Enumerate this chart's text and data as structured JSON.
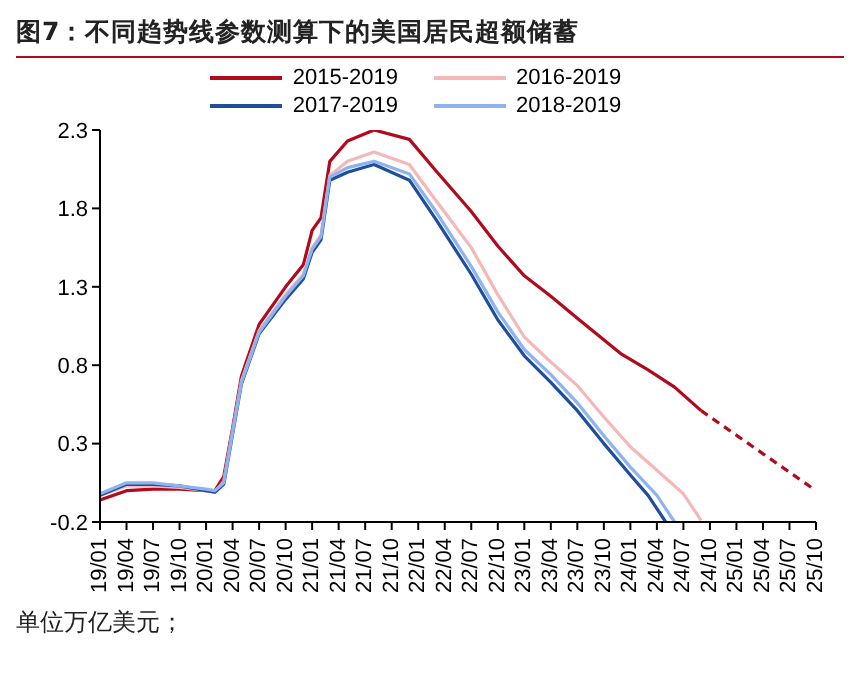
{
  "chart_data": {
    "type": "line",
    "title": "图7：不同趋势线参数测算下的美国居民超额储蓄",
    "annotations": [
      "单位万亿美元；"
    ],
    "xlim": [
      "2019-01",
      "2025-10"
    ],
    "xticks": [
      {
        "value": "2019-01",
        "label": "19/01"
      },
      {
        "value": "2019-04",
        "label": "19/04"
      },
      {
        "value": "2019-07",
        "label": "19/07"
      },
      {
        "value": "2019-10",
        "label": "19/10"
      },
      {
        "value": "2020-01",
        "label": "20/01"
      },
      {
        "value": "2020-04",
        "label": "20/04"
      },
      {
        "value": "2020-07",
        "label": "20/07"
      },
      {
        "value": "2020-10",
        "label": "20/10"
      },
      {
        "value": "2021-01",
        "label": "21/01"
      },
      {
        "value": "2021-04",
        "label": "21/04"
      },
      {
        "value": "2021-07",
        "label": "21/07"
      },
      {
        "value": "2021-10",
        "label": "21/10"
      },
      {
        "value": "2022-01",
        "label": "22/01"
      },
      {
        "value": "2022-04",
        "label": "22/04"
      },
      {
        "value": "2022-07",
        "label": "22/07"
      },
      {
        "value": "2022-10",
        "label": "22/10"
      },
      {
        "value": "2023-01",
        "label": "23/01"
      },
      {
        "value": "2023-04",
        "label": "23/04"
      },
      {
        "value": "2023-07",
        "label": "23/07"
      },
      {
        "value": "2023-10",
        "label": "23/10"
      },
      {
        "value": "2024-01",
        "label": "24/01"
      },
      {
        "value": "2024-04",
        "label": "24/04"
      },
      {
        "value": "2024-07",
        "label": "24/07"
      },
      {
        "value": "2024-10",
        "label": "24/10"
      },
      {
        "value": "2025-01",
        "label": "25/01"
      },
      {
        "value": "2025-04",
        "label": "25/04"
      },
      {
        "value": "2025-07",
        "label": "25/07"
      },
      {
        "value": "2025-10",
        "label": "25/10"
      }
    ],
    "ylim": [
      -0.2,
      2.3
    ],
    "yticks": [
      -0.2,
      0.3,
      0.8,
      1.3,
      1.8,
      2.3
    ],
    "legend": "top",
    "marker": "none",
    "series": [
      {
        "name": "2015-2019",
        "color": "#b00a1c",
        "line_style": "solid",
        "x": [
          "2019-01",
          "2019-04",
          "2019-07",
          "2019-10",
          "2020-01",
          "2020-02",
          "2020-03",
          "2020-04",
          "2020-05",
          "2020-07",
          "2020-10",
          "2020-12",
          "2021-01",
          "2021-02",
          "2021-03",
          "2021-05",
          "2021-08",
          "2021-12",
          "2022-03",
          "2022-07",
          "2022-10",
          "2023-01",
          "2023-04",
          "2023-07",
          "2023-12",
          "2024-03",
          "2024-06",
          "2024-09"
        ],
        "values": [
          -0.06,
          0.0,
          0.01,
          0.01,
          0.0,
          0.0,
          0.09,
          0.4,
          0.73,
          1.06,
          1.3,
          1.44,
          1.66,
          1.74,
          2.1,
          2.23,
          2.3,
          2.24,
          2.04,
          1.78,
          1.56,
          1.37,
          1.24,
          1.1,
          0.87,
          0.77,
          0.66,
          0.51
        ]
      },
      {
        "color": "#b00a1c",
        "line_style": "dashed",
        "x": [
          "2024-09",
          "2025-10"
        ],
        "values": [
          0.51,
          0.0
        ]
      },
      {
        "name": "2016-2019",
        "color": "#f5b8b8",
        "line_style": "solid",
        "x": [
          "2019-01",
          "2019-04",
          "2019-07",
          "2019-10",
          "2020-01",
          "2020-02",
          "2020-03",
          "2020-04",
          "2020-05",
          "2020-07",
          "2020-10",
          "2020-12",
          "2021-01",
          "2021-02",
          "2021-03",
          "2021-05",
          "2021-08",
          "2021-12",
          "2022-03",
          "2022-07",
          "2022-10",
          "2023-01",
          "2023-04",
          "2023-07",
          "2023-10",
          "2024-01",
          "2024-04",
          "2024-07",
          "2024-09"
        ],
        "values": [
          -0.03,
          0.03,
          0.03,
          0.02,
          0.0,
          -0.01,
          0.06,
          0.38,
          0.7,
          1.02,
          1.25,
          1.38,
          1.55,
          1.63,
          2.01,
          2.1,
          2.16,
          2.08,
          1.85,
          1.55,
          1.25,
          0.98,
          0.82,
          0.67,
          0.47,
          0.28,
          0.13,
          -0.02,
          -0.19
        ]
      },
      {
        "name": "2017-2019",
        "color": "#1f4e9c",
        "line_style": "solid",
        "x": [
          "2019-01",
          "2019-04",
          "2019-07",
          "2019-10",
          "2020-01",
          "2020-02",
          "2020-03",
          "2020-04",
          "2020-05",
          "2020-07",
          "2020-10",
          "2020-12",
          "2021-01",
          "2021-02",
          "2021-03",
          "2021-05",
          "2021-08",
          "2021-12",
          "2022-03",
          "2022-07",
          "2022-10",
          "2023-01",
          "2023-04",
          "2023-07",
          "2023-10",
          "2024-01",
          "2024-03",
          "2024-05"
        ],
        "values": [
          -0.03,
          0.04,
          0.04,
          0.03,
          0.0,
          -0.01,
          0.04,
          0.36,
          0.68,
          1.0,
          1.22,
          1.35,
          1.52,
          1.6,
          1.98,
          2.03,
          2.08,
          1.98,
          1.73,
          1.38,
          1.09,
          0.86,
          0.69,
          0.51,
          0.3,
          0.1,
          -0.03,
          -0.2
        ]
      },
      {
        "name": "2018-2019",
        "color": "#8fb3f0",
        "line_style": "solid",
        "x": [
          "2019-01",
          "2019-04",
          "2019-07",
          "2019-10",
          "2020-01",
          "2020-02",
          "2020-03",
          "2020-04",
          "2020-05",
          "2020-07",
          "2020-10",
          "2020-12",
          "2021-01",
          "2021-02",
          "2021-03",
          "2021-05",
          "2021-08",
          "2021-12",
          "2022-03",
          "2022-07",
          "2022-10",
          "2023-01",
          "2023-04",
          "2023-07",
          "2023-10",
          "2024-01",
          "2024-04",
          "2024-06"
        ],
        "values": [
          -0.02,
          0.05,
          0.05,
          0.03,
          0.01,
          0.0,
          0.05,
          0.37,
          0.69,
          1.01,
          1.24,
          1.37,
          1.54,
          1.62,
          2.0,
          2.06,
          2.1,
          2.02,
          1.78,
          1.43,
          1.14,
          0.9,
          0.74,
          0.56,
          0.35,
          0.15,
          -0.03,
          -0.2
        ]
      }
    ]
  }
}
